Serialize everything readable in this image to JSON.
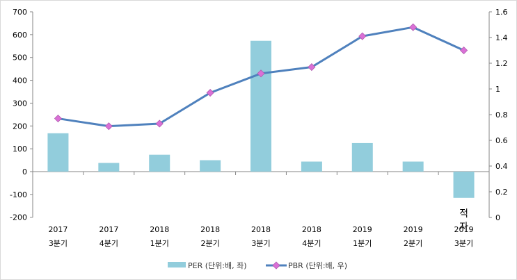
{
  "chart_data": {
    "type": "bar+line",
    "title": "",
    "categories": [
      {
        "year": "2017",
        "quarter": "3분기"
      },
      {
        "year": "2017",
        "quarter": "4분기"
      },
      {
        "year": "2018",
        "quarter": "1분기"
      },
      {
        "year": "2018",
        "quarter": "2분기"
      },
      {
        "year": "2018",
        "quarter": "3분기"
      },
      {
        "year": "2018",
        "quarter": "4분기"
      },
      {
        "year": "2019",
        "quarter": "1분기"
      },
      {
        "year": "2019",
        "quarter": "2분기"
      },
      {
        "year": "2019",
        "quarter": "3분기"
      }
    ],
    "series": [
      {
        "name": "PER (단위:배, 좌)",
        "type": "bar",
        "axis": "left",
        "color": "#92cddc",
        "values": [
          168,
          38,
          74,
          50,
          573,
          44,
          125,
          44,
          -115
        ]
      },
      {
        "name": "PBR (단위:배, 우)",
        "type": "line",
        "axis": "right",
        "color": "#4f81bd",
        "marker_color": "#da70d6",
        "values": [
          0.77,
          0.71,
          0.73,
          0.97,
          1.12,
          1.17,
          1.41,
          1.48,
          1.3
        ]
      }
    ],
    "y_left": {
      "min": -200,
      "max": 700,
      "step": 100,
      "ticks": [
        "-200",
        "-100",
        "0",
        "100",
        "200",
        "300",
        "400",
        "500",
        "600",
        "700"
      ]
    },
    "y_right": {
      "min": 0,
      "max": 1.6,
      "step": 0.2,
      "ticks": [
        "0",
        "0.2",
        "0.4",
        "0.6",
        "0.8",
        "1",
        "1.2",
        "1.4",
        "1.6"
      ]
    },
    "annotation": {
      "text_line1": "적",
      "text_line2": "자",
      "category_index": 8
    },
    "legend": "bottom-center",
    "grid": false
  }
}
